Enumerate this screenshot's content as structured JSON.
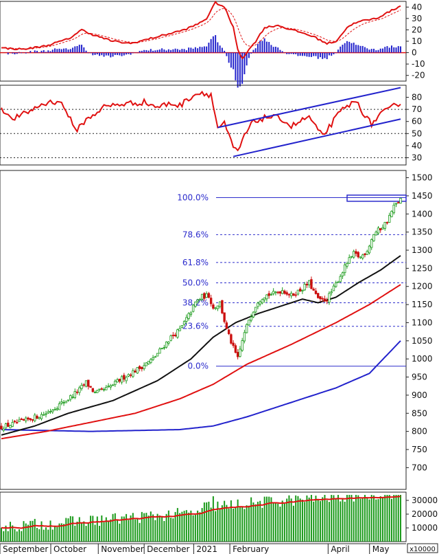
{
  "chart_data": [
    {
      "type": "line",
      "panel": "macd",
      "ylim": [
        -25,
        45
      ],
      "yticks": [
        "40",
        "30",
        "20",
        "10",
        "0",
        "-10",
        "-20"
      ],
      "series_colors": {
        "macd": "#e01010",
        "signal": "#e01010",
        "histogram": "#2222cc"
      },
      "grid": false
    },
    {
      "type": "line",
      "panel": "rsi",
      "ylim": [
        24,
        90
      ],
      "yticks": [
        "80",
        "70",
        "60",
        "50",
        "40",
        "30"
      ],
      "reference_lines": [
        70,
        50,
        30
      ],
      "line_color": "#e01010",
      "trend_channel_color": "#2222cc"
    },
    {
      "type": "candlestick",
      "panel": "price",
      "ylim": [
        640,
        1520
      ],
      "yticks": [
        "1500",
        "1450",
        "1400",
        "1350",
        "1300",
        "1250",
        "1200",
        "1150",
        "1100",
        "1050",
        "1000",
        "950",
        "900",
        "850",
        "800",
        "750",
        "700"
      ],
      "fibonacci": [
        {
          "label": "100.0%",
          "value": 1445
        },
        {
          "label": "78.6%",
          "value": 1343
        },
        {
          "label": "61.8%",
          "value": 1266
        },
        {
          "label": "50.0%",
          "value": 1210
        },
        {
          "label": "38.2%",
          "value": 1155
        },
        {
          "label": "23.6%",
          "value": 1090
        },
        {
          "label": "0.0%",
          "value": 980
        }
      ],
      "ma_colors": {
        "ma20": "#111111",
        "ma50": "#e01010",
        "ma100": "#2222cc"
      },
      "up_color": "#1a9a1a",
      "down_color": "#cc1010"
    },
    {
      "type": "bar",
      "panel": "volume",
      "ylim": [
        0,
        36000
      ],
      "yticks": [
        "30000",
        "20000",
        "10000"
      ],
      "unit_label": "x10000",
      "bar_color": "#1a9a1a",
      "ma_color": "#e01010"
    }
  ],
  "x_axis": {
    "months": [
      {
        "label": "September",
        "pos": 0.0
      },
      {
        "label": "October",
        "pos": 0.125
      },
      {
        "label": "November",
        "pos": 0.242
      },
      {
        "label": "December",
        "pos": 0.355
      },
      {
        "label": "2021",
        "pos": 0.477
      },
      {
        "label": "February",
        "pos": 0.566
      },
      {
        "label": "April",
        "pos": 0.808
      },
      {
        "label": "May",
        "pos": 0.91
      }
    ]
  }
}
